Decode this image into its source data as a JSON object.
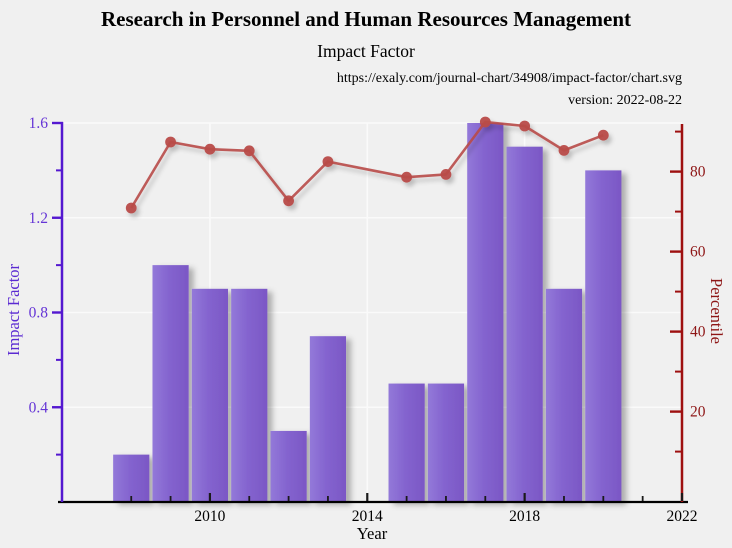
{
  "header": {
    "title": "Research in Personnel and Human Resources Management",
    "subtitle": "Impact Factor",
    "url": "https://exaly.com/journal-chart/34908/impact-factor/chart.svg",
    "version_label": "version: 2022-08-22"
  },
  "colors": {
    "background": "#f0f0f0",
    "grid": "#fafafa",
    "bar_gradient_left": "#9379d9",
    "bar_gradient_right": "#7b57c5",
    "line": "#b84b48",
    "axis_left": "#5418d0",
    "tick_label_left": "#6535d6",
    "axis_label_left": "#5b2ad2",
    "axis_right": "#9e1010",
    "tick_label_right": "#8e1616",
    "axis_label_right": "#8e1616",
    "axis_bottom": "#000000",
    "text": "#000000"
  },
  "chart_data": {
    "type": "bar",
    "title": "Impact Factor",
    "xlabel": "Year",
    "ylabel_left": "Impact Factor",
    "ylabel_right": "Percentile",
    "xlim": [
      2006.24,
      2022
    ],
    "ylim_left": [
      0,
      1.6
    ],
    "ylim_right": [
      -2.6,
      92.15
    ],
    "xticks_major": [
      2010,
      2014,
      2018,
      2022
    ],
    "xticks_minor": [
      2008,
      2009,
      2011,
      2012,
      2013,
      2015,
      2016,
      2017,
      2019,
      2020,
      2021
    ],
    "yticks_left": [
      0.4,
      0.8,
      1.2,
      1.6
    ],
    "yticks_left_minor": [
      0.2,
      0.6,
      1.0,
      1.4
    ],
    "yticks_right": [
      20,
      40,
      60,
      80
    ],
    "yticks_right_minor": [
      10,
      30,
      50,
      70,
      90
    ],
    "grid": true,
    "legend": "none",
    "bar_width_years": 0.92,
    "series": [
      {
        "name": "Impact Factor",
        "type": "bar",
        "axis": "left",
        "x": [
          2008,
          2009,
          2010,
          2011,
          2012,
          2013,
          2015,
          2016,
          2017,
          2018,
          2019,
          2020
        ],
        "y": [
          0.2,
          1.0,
          0.9,
          0.9,
          0.3,
          0.7,
          0.5,
          0.5,
          1.6,
          1.5,
          0.9,
          1.4
        ]
      },
      {
        "name": "Percentile",
        "type": "line",
        "axis": "right",
        "x": [
          2008,
          2009,
          2010,
          2011,
          2012,
          2013,
          2015,
          2016,
          2017,
          2018,
          2019,
          2020
        ],
        "y": [
          70.9,
          87.4,
          85.6,
          85.2,
          72.7,
          82.5,
          78.6,
          79.3,
          92.4,
          91.4,
          85.3,
          89.1
        ]
      }
    ]
  }
}
